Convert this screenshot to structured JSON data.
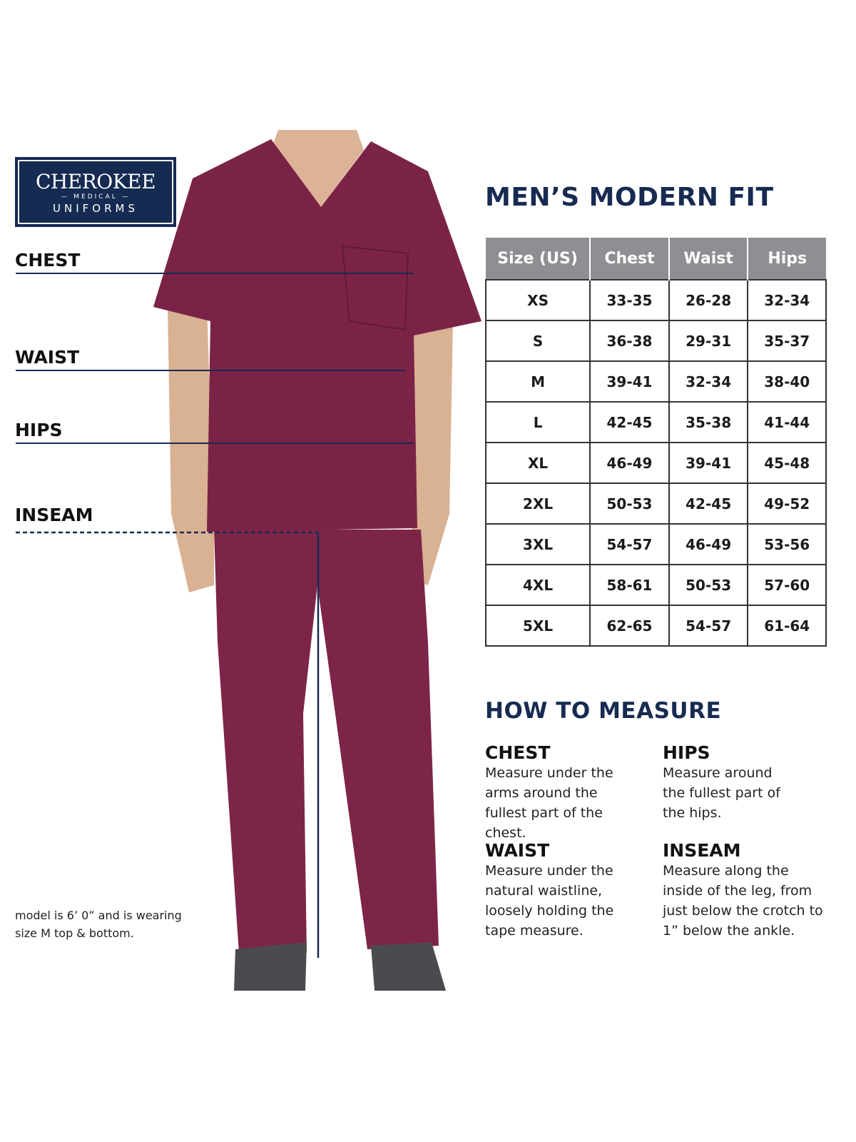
{
  "brand": {
    "name": "CHEROKEE",
    "sub1": "MEDICAL",
    "sub2": "UNIFORMS"
  },
  "colors": {
    "navy": "#172b52",
    "header_gray": "#8e8f92",
    "garment": "#7b2346"
  },
  "measure_labels": [
    "CHEST",
    "WAIST",
    "HIPS",
    "INSEAM"
  ],
  "title": "MEN’S MODERN FIT",
  "table": {
    "headers": [
      "Size (US)",
      "Chest",
      "Waist",
      "Hips"
    ],
    "rows": [
      [
        "XS",
        "33-35",
        "26-28",
        "32-34"
      ],
      [
        "S",
        "36-38",
        "29-31",
        "35-37"
      ],
      [
        "M",
        "39-41",
        "32-34",
        "38-40"
      ],
      [
        "L",
        "42-45",
        "35-38",
        "41-44"
      ],
      [
        "XL",
        "46-49",
        "39-41",
        "45-48"
      ],
      [
        "2XL",
        "50-53",
        "42-45",
        "49-52"
      ],
      [
        "3XL",
        "54-57",
        "46-49",
        "53-56"
      ],
      [
        "4XL",
        "58-61",
        "50-53",
        "57-60"
      ],
      [
        "5XL",
        "62-65",
        "54-57",
        "61-64"
      ]
    ]
  },
  "how_to": {
    "title": "HOW TO MEASURE",
    "items": [
      {
        "heading": "CHEST",
        "text": "Measure under the arms around the fullest part of the chest."
      },
      {
        "heading": "HIPS",
        "text": "Measure around the fullest part of the hips."
      },
      {
        "heading": "WAIST",
        "text": "Measure under the natural waistline, loosely holding the tape measure."
      },
      {
        "heading": "INSEAM",
        "text": "Measure along the inside of the leg, from just below the crotch to 1” below the ankle."
      }
    ]
  },
  "model_note": "model is 6’ 0” and is wearing size M top & bottom."
}
